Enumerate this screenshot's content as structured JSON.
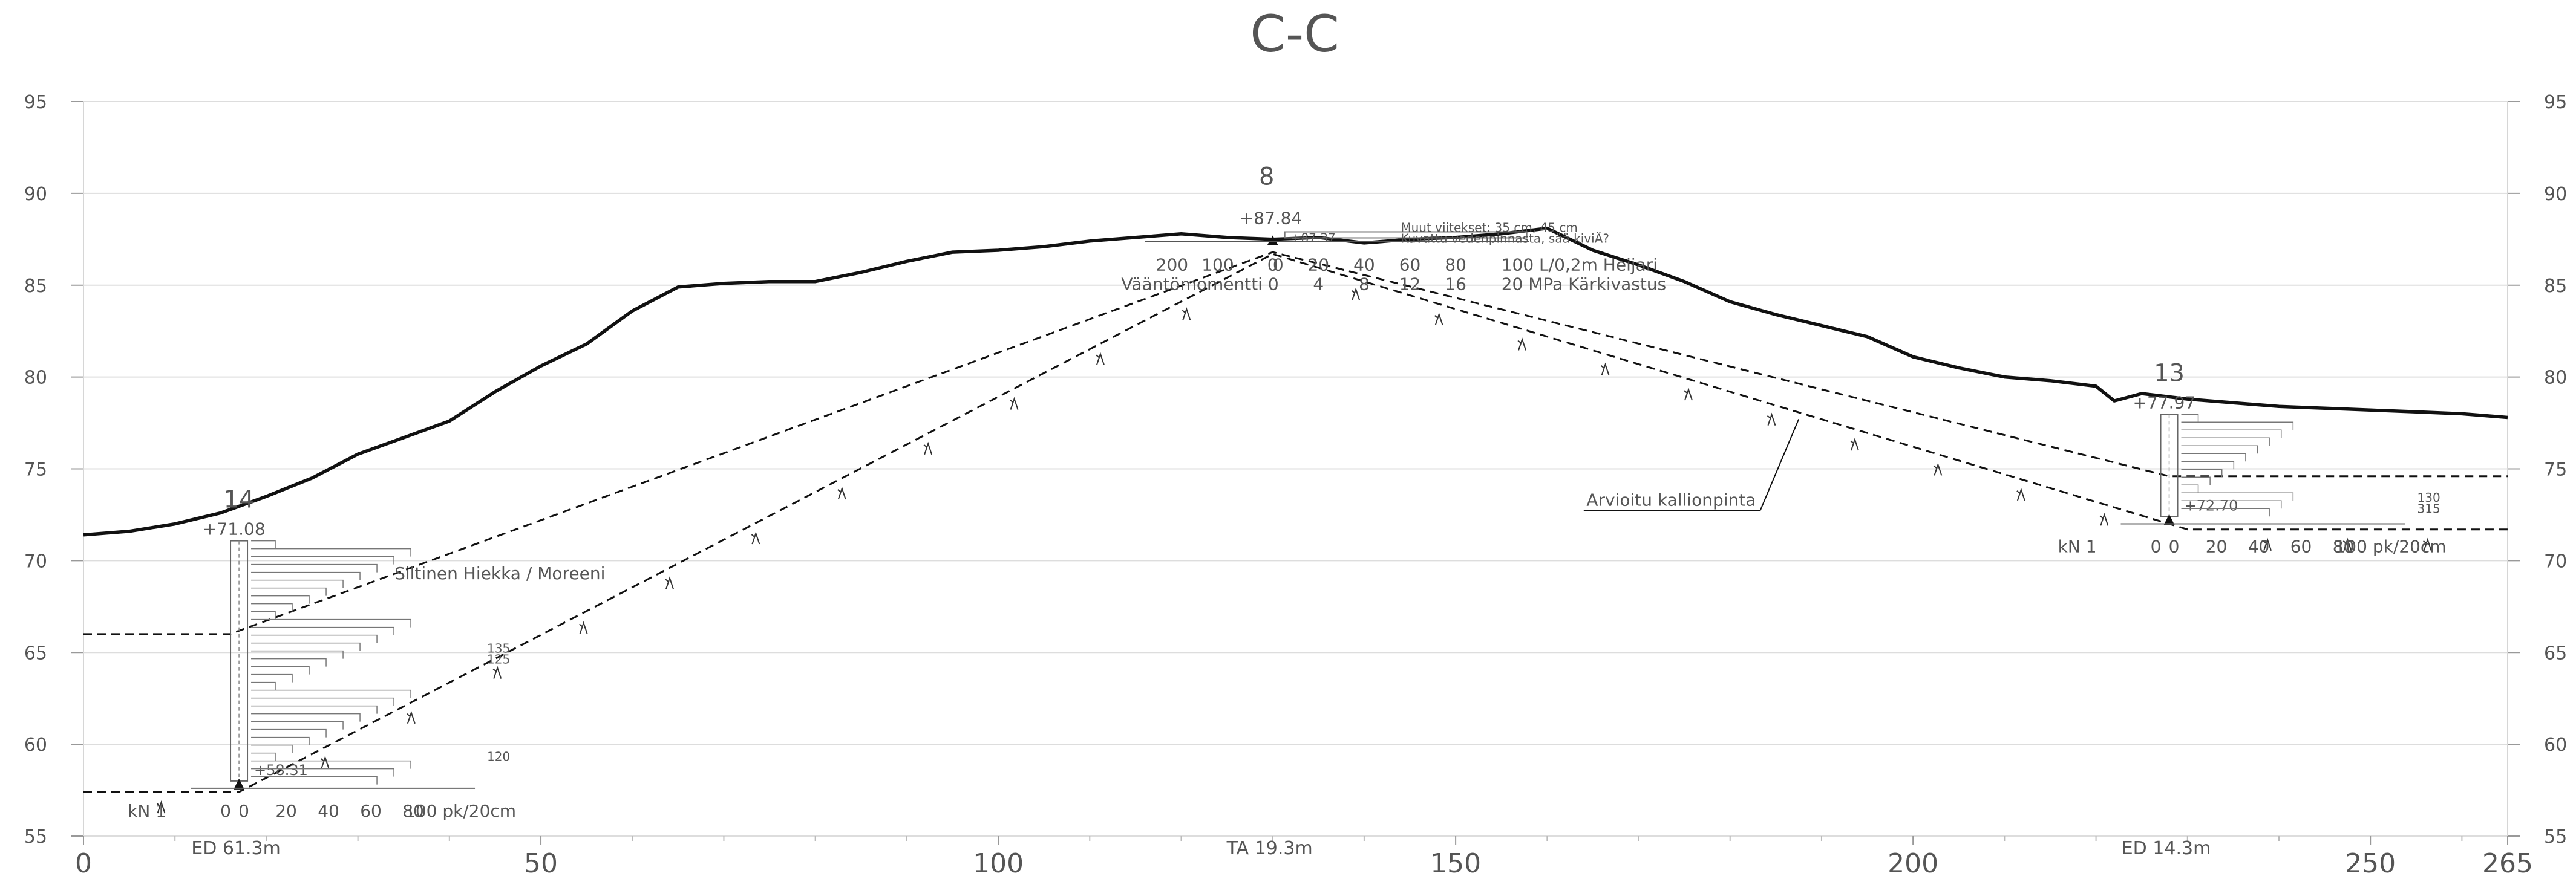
{
  "title": "C-C",
  "axes": {
    "x_range": [
      0,
      265
    ],
    "y_range": [
      55,
      95
    ],
    "x_ticks": [
      "0",
      "50",
      "100",
      "150",
      "200",
      "250",
      "265"
    ],
    "y_ticks": [
      "55",
      "60",
      "65",
      "70",
      "75",
      "80",
      "85",
      "90",
      "95"
    ]
  },
  "chart_data": {
    "type": "line",
    "x_range": [
      0,
      265
    ],
    "y_range": [
      55,
      95
    ],
    "grid": true,
    "series": [
      {
        "role": "terrain surface",
        "x": [
          0,
          5,
          10,
          15,
          20,
          25,
          30,
          35,
          40,
          45,
          50,
          55,
          60,
          65,
          70,
          75,
          80,
          85,
          90,
          95,
          100,
          105,
          110,
          115,
          120,
          125,
          130,
          135,
          140,
          145,
          150,
          155,
          160,
          165,
          170,
          175,
          180,
          185,
          190,
          195,
          200,
          205,
          210,
          215,
          220,
          222,
          225,
          230,
          235,
          240,
          245,
          250,
          255,
          260,
          265
        ],
        "y": [
          71.4,
          71.6,
          72.0,
          72.6,
          73.5,
          74.5,
          75.8,
          76.7,
          77.6,
          79.2,
          80.6,
          81.8,
          83.6,
          84.9,
          85.1,
          85.2,
          85.2,
          85.7,
          86.3,
          86.8,
          86.9,
          87.1,
          87.4,
          87.6,
          87.8,
          87.6,
          87.5,
          87.6,
          87.3,
          87.5,
          87.6,
          87.8,
          88.1,
          86.9,
          86.1,
          85.2,
          84.1,
          83.4,
          82.8,
          82.2,
          81.1,
          80.5,
          80.0,
          79.8,
          79.5,
          78.7,
          79.1,
          78.8,
          78.6,
          78.4,
          78.3,
          78.2,
          78.1,
          78.0,
          77.8
        ]
      },
      {
        "role": "estimated bedrock surface",
        "label": "Arvioitu kallionpinta",
        "x": [
          0,
          17,
          130,
          230,
          265
        ],
        "y": [
          57.4,
          57.4,
          86.7,
          71.7,
          71.7
        ]
      },
      {
        "role": "soil boundary",
        "x": [
          0,
          16,
          130,
          228,
          265
        ],
        "y": [
          66.0,
          66.0,
          86.8,
          74.6,
          74.6
        ]
      }
    ],
    "boreholes": [
      {
        "id": "14",
        "x": 17,
        "ground": "+71.08",
        "bottom": "+58.31",
        "depth": "ED 61.3m",
        "scale_label": "kN  1",
        "x_scale": [
          "0",
          "0",
          "20",
          "40",
          "60",
          "80",
          "100 pk/20cm"
        ],
        "marks": [
          "135",
          "125",
          "120"
        ]
      },
      {
        "id": "8",
        "x": 130,
        "ground": "+87.84",
        "water": "+87.37",
        "depth": "TA 19.3m",
        "scale_top": [
          "200",
          "100",
          "0",
          "0",
          "20",
          "40",
          "60",
          "80",
          "100 L/0,2m  Heijari"
        ],
        "scale_bottom": [
          "Vääntömomentti 0",
          "4",
          "8",
          "12",
          "16",
          "20 MPa  Kärkivastus"
        ],
        "notes": [
          "Muut viitekset: 35 cm, 45 cm",
          "Kuvattu vedenpinnasta, sää kiviÄ?"
        ]
      },
      {
        "id": "13",
        "x": 228,
        "ground": "+77.97",
        "bottom": "+72.70",
        "depth": "ED 14.3m",
        "scale_label": "kN  1",
        "x_scale": [
          "0",
          "0",
          "20",
          "40",
          "60",
          "80",
          "100 pk/20cm"
        ],
        "marks": [
          "130",
          "315"
        ]
      }
    ],
    "annotations": [
      "Siltinen Hiekka / Moreeni",
      "Arvioitu kallionpinta"
    ]
  }
}
